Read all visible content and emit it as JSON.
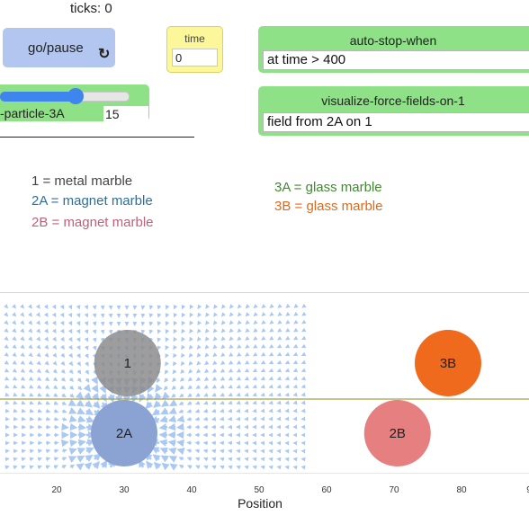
{
  "ticks_label": "ticks: 0",
  "go_button": {
    "label": "go/pause",
    "icon": "forever-arrow-icon"
  },
  "time_monitor": {
    "label": "time",
    "value": "0"
  },
  "auto_stop": {
    "label": "auto-stop-when",
    "value": "at time > 400"
  },
  "visualize": {
    "label": "visualize-force-fields-on-1",
    "value": "field from 2A on 1"
  },
  "slider": {
    "label": "-particle-3A",
    "value": "15",
    "fraction": 0.59
  },
  "legend_notes": [
    {
      "text": "1 = metal marble",
      "color": "#444444"
    },
    {
      "text": "2A = magnet marble",
      "color": "#2e6f9a"
    },
    {
      "text": "2B = magnet marble",
      "color": "#c0607a"
    },
    {
      "text": "3A = glass marble",
      "color": "#3e8a2e"
    },
    {
      "text": "3B = glass marble",
      "color": "#e06a1c"
    }
  ],
  "view": {
    "marbles": [
      {
        "label": "1",
        "position": 30.5,
        "row": "top",
        "color": "#8c8c8c"
      },
      {
        "label": "2A",
        "position": 30,
        "row": "bottom",
        "color": "#8aa3d3"
      },
      {
        "label": "2B",
        "position": 70.5,
        "row": "bottom",
        "color": "#e67f7f"
      },
      {
        "label": "3B",
        "position": 78,
        "row": "top",
        "color": "#ef6a1d"
      }
    ],
    "axis": {
      "title": "Position",
      "ticks": [
        "20",
        "30",
        "40",
        "50",
        "60",
        "70",
        "80",
        "9"
      ]
    },
    "colors": {
      "field_arrows": "#a9c8f3",
      "divider_line": "#a8a04a"
    }
  }
}
